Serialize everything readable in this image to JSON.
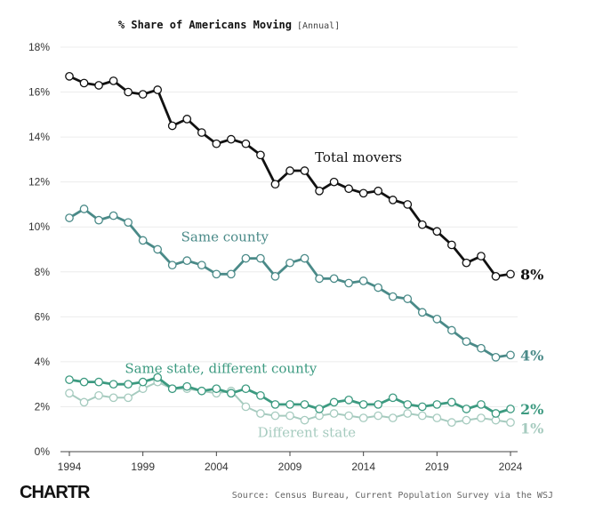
{
  "chart_data": {
    "type": "line",
    "title": "% Share of Americans Moving",
    "subtitle": "[Annual]",
    "source": "Source: Census Bureau, Current Population Survey via the WSJ",
    "logo": "CHARTR",
    "x": [
      1994,
      1995,
      1996,
      1997,
      1998,
      1999,
      2000,
      2001,
      2002,
      2003,
      2004,
      2005,
      2006,
      2007,
      2008,
      2009,
      2010,
      2011,
      2012,
      2013,
      2014,
      2015,
      2016,
      2017,
      2018,
      2019,
      2020,
      2021,
      2022,
      2023,
      2024
    ],
    "xticks": [
      1994,
      1999,
      2004,
      2009,
      2014,
      2019,
      2024
    ],
    "xtick_labels": [
      "1994",
      "1999",
      "2004",
      "2009",
      "2014",
      "2019",
      "2024"
    ],
    "ylim": [
      0,
      18
    ],
    "yticks": [
      0,
      2,
      4,
      6,
      8,
      10,
      12,
      14,
      16,
      18
    ],
    "ytick_labels": [
      "0%",
      "2%",
      "4%",
      "6%",
      "8%",
      "10%",
      "12%",
      "14%",
      "16%",
      "18%"
    ],
    "grid": true,
    "series": [
      {
        "name": "Total movers",
        "end_label": "8%",
        "color": "#111111",
        "values": [
          16.7,
          16.4,
          16.3,
          16.5,
          16.0,
          15.9,
          16.1,
          14.5,
          14.8,
          14.2,
          13.7,
          13.9,
          13.7,
          13.2,
          11.9,
          12.5,
          12.5,
          11.6,
          12.0,
          11.7,
          11.5,
          11.6,
          11.2,
          11.0,
          10.1,
          9.8,
          9.2,
          8.4,
          8.7,
          7.8,
          7.9
        ]
      },
      {
        "name": "Same county",
        "end_label": "4%",
        "color": "#4a8a88",
        "values": [
          10.4,
          10.8,
          10.3,
          10.5,
          10.2,
          9.4,
          9.0,
          8.3,
          8.5,
          8.3,
          7.9,
          7.9,
          8.6,
          8.6,
          7.8,
          8.4,
          8.6,
          7.7,
          7.7,
          7.5,
          7.6,
          7.3,
          6.9,
          6.8,
          6.2,
          5.9,
          5.4,
          4.9,
          4.6,
          4.2,
          4.3
        ]
      },
      {
        "name": "Same state, different county",
        "end_label": "2%",
        "color": "#3c9a80",
        "values": [
          3.2,
          3.1,
          3.1,
          3.0,
          3.0,
          3.1,
          3.3,
          2.8,
          2.9,
          2.7,
          2.8,
          2.6,
          2.8,
          2.5,
          2.1,
          2.1,
          2.1,
          1.9,
          2.2,
          2.3,
          2.1,
          2.1,
          2.4,
          2.1,
          2.0,
          2.1,
          2.2,
          1.9,
          2.1,
          1.7,
          1.9
        ]
      },
      {
        "name": "Different state",
        "end_label": "1%",
        "color": "#a6cbbf",
        "values": [
          2.6,
          2.2,
          2.5,
          2.4,
          2.4,
          2.8,
          3.1,
          2.8,
          2.8,
          2.7,
          2.6,
          2.7,
          2.0,
          1.7,
          1.6,
          1.6,
          1.4,
          1.6,
          1.7,
          1.6,
          1.5,
          1.6,
          1.5,
          1.7,
          1.6,
          1.5,
          1.3,
          1.4,
          1.5,
          1.4,
          1.3
        ]
      }
    ]
  }
}
